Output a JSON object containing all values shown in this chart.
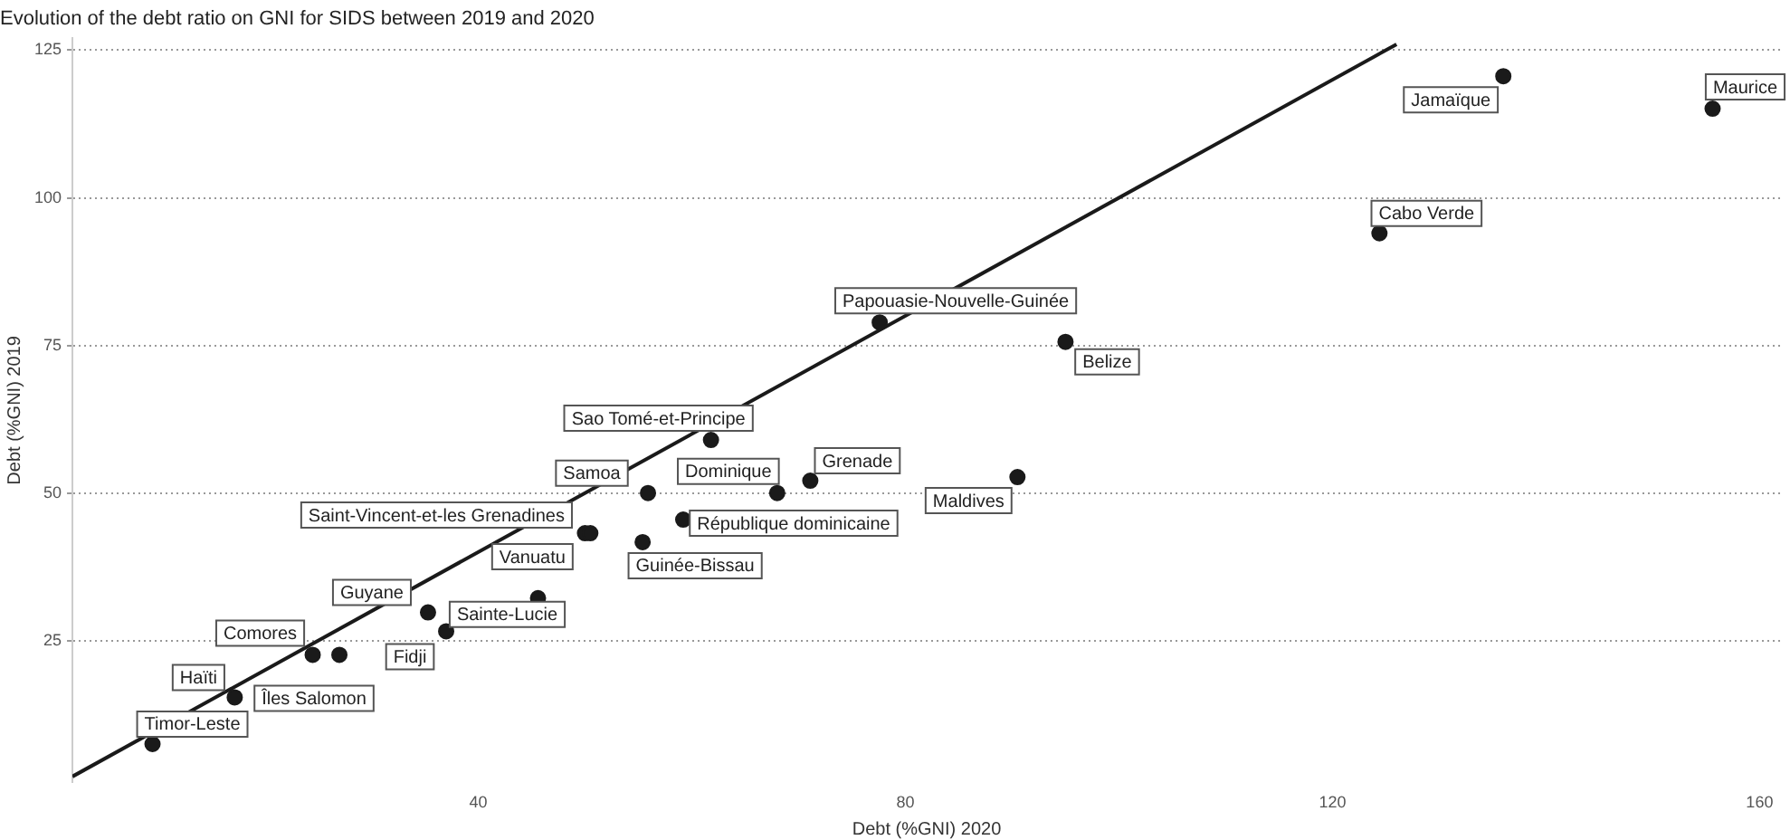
{
  "chart_data": {
    "type": "scatter",
    "title": "Evolution of the debt ratio on GNI for SIDS between 2019 and 2020",
    "xlabel": "Debt (%GNI) 2020",
    "ylabel": "Debt (%GNI) 2019",
    "xlim": [
      2,
      162
    ],
    "ylim": [
      1,
      127
    ],
    "xticks": [
      40,
      80,
      120,
      160
    ],
    "yticks": [
      25,
      50,
      75,
      100,
      125
    ],
    "grid": "y",
    "series": [
      {
        "marker": "circle",
        "color": "#1a1a1a",
        "x": [
          9.5,
          17.2,
          24.5,
          27.0,
          35.3,
          37.0,
          45.6,
          50.0,
          50.5,
          55.9,
          68.0,
          71.1,
          59.2,
          55.4,
          61.8,
          90.5,
          77.6,
          95.0,
          124.4,
          136.0,
          155.6
        ],
        "values": [
          7.5,
          15.4,
          22.6,
          22.6,
          29.8,
          26.6,
          32.2,
          43.2,
          43.2,
          50.0,
          50.0,
          52.1,
          45.5,
          41.7,
          59.0,
          52.7,
          78.9,
          75.6,
          94.0,
          120.6,
          115.1
        ]
      },
      {
        "type": "line",
        "color": "#1a1a1a",
        "x": [
          2,
          126
        ],
        "values": [
          2,
          126
        ]
      }
    ],
    "annotations": [
      {
        "text": "Timor-Leste",
        "x": 9.5,
        "y": 7.5
      },
      {
        "text": "Haïti",
        "x": 17.2,
        "y": 15.4
      },
      {
        "text": "Comores",
        "x": 24.5,
        "y": 22.6
      },
      {
        "text": "Îles Salomon",
        "x": 27.0,
        "y": 22.6
      },
      {
        "text": "Guyane",
        "x": 35.3,
        "y": 29.8
      },
      {
        "text": "Fidji",
        "x": 37.0,
        "y": 26.6
      },
      {
        "text": "Sainte-Lucie",
        "x": 45.6,
        "y": 32.2
      },
      {
        "text": "Saint-Vincent-et-les Grenadines",
        "x": 50.0,
        "y": 43.2
      },
      {
        "text": "Vanuatu",
        "x": 50.5,
        "y": 43.2
      },
      {
        "text": "Samoa",
        "x": 55.9,
        "y": 50.0
      },
      {
        "text": "Dominique",
        "x": 68.0,
        "y": 50.0
      },
      {
        "text": "Grenade",
        "x": 71.1,
        "y": 52.1
      },
      {
        "text": "République dominicaine",
        "x": 59.2,
        "y": 45.5
      },
      {
        "text": "Guinée-Bissau",
        "x": 55.4,
        "y": 41.7
      },
      {
        "text": "Sao Tomé-et-Principe",
        "x": 61.8,
        "y": 59.0
      },
      {
        "text": "Maldives",
        "x": 90.5,
        "y": 52.7
      },
      {
        "text": "Papouasie-Nouvelle-Guinée",
        "x": 77.6,
        "y": 78.9
      },
      {
        "text": "Belize",
        "x": 95.0,
        "y": 75.6
      },
      {
        "text": "Cabo Verde",
        "x": 124.4,
        "y": 94.0
      },
      {
        "text": "Jamaïque",
        "x": 136.0,
        "y": 120.6
      },
      {
        "text": "Maurice",
        "x": 155.6,
        "y": 115.1
      }
    ]
  }
}
